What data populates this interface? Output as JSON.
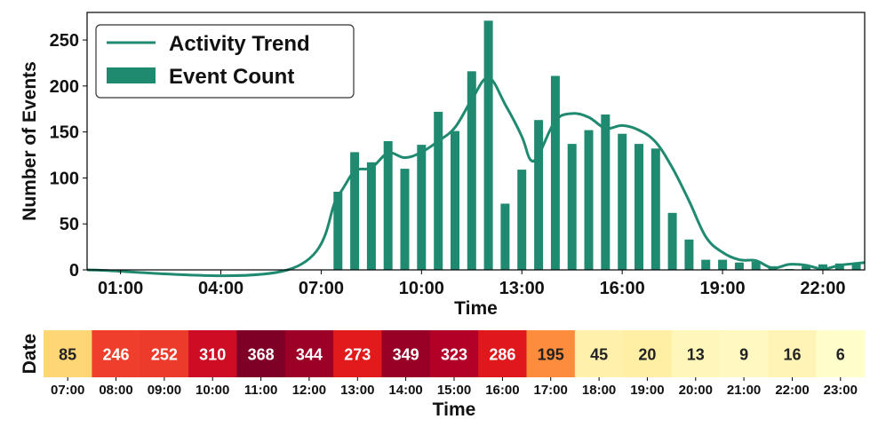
{
  "chart_data": [
    {
      "type": "bar",
      "xlabel": "Time",
      "ylabel": "Number of Events",
      "xlim_hours": [
        0.0,
        23.25
      ],
      "ylim": [
        0,
        280
      ],
      "y_ticks": [
        0,
        50,
        100,
        150,
        200,
        250
      ],
      "x_ticks": [
        "01:00",
        "04:00",
        "07:00",
        "10:00",
        "13:00",
        "16:00",
        "19:00",
        "22:00"
      ],
      "grid": false,
      "legend_position": "top-left",
      "series": [
        {
          "name": "Event Count",
          "kind": "bar",
          "color": "#1f8a70",
          "points": [
            {
              "x": "07:30",
              "y": 85
            },
            {
              "x": "08:00",
              "y": 128
            },
            {
              "x": "08:30",
              "y": 117
            },
            {
              "x": "09:00",
              "y": 140
            },
            {
              "x": "09:30",
              "y": 110
            },
            {
              "x": "10:00",
              "y": 136
            },
            {
              "x": "10:30",
              "y": 172
            },
            {
              "x": "11:00",
              "y": 151
            },
            {
              "x": "11:30",
              "y": 216
            },
            {
              "x": "12:00",
              "y": 271
            },
            {
              "x": "12:30",
              "y": 72
            },
            {
              "x": "13:00",
              "y": 109
            },
            {
              "x": "13:30",
              "y": 163
            },
            {
              "x": "14:00",
              "y": 211
            },
            {
              "x": "14:30",
              "y": 137
            },
            {
              "x": "15:00",
              "y": 152
            },
            {
              "x": "15:30",
              "y": 169
            },
            {
              "x": "16:00",
              "y": 148
            },
            {
              "x": "16:30",
              "y": 137
            },
            {
              "x": "17:00",
              "y": 132
            },
            {
              "x": "17:30",
              "y": 62
            },
            {
              "x": "18:00",
              "y": 33
            },
            {
              "x": "18:30",
              "y": 11
            },
            {
              "x": "19:00",
              "y": 11
            },
            {
              "x": "19:30",
              "y": 8
            },
            {
              "x": "20:00",
              "y": 9
            },
            {
              "x": "20:30",
              "y": 4
            },
            {
              "x": "21:00",
              "y": 1
            },
            {
              "x": "21:30",
              "y": 4
            },
            {
              "x": "22:00",
              "y": 6
            },
            {
              "x": "22:30",
              "y": 7
            },
            {
              "x": "23:00",
              "y": 7
            }
          ]
        },
        {
          "name": "Activity Trend",
          "kind": "line",
          "color": "#1f8a70",
          "points": [
            {
              "x": "00:00",
              "y": 0
            },
            {
              "x": "06:00",
              "y": 0
            },
            {
              "x": "07:30",
              "y": 80
            },
            {
              "x": "08:00",
              "y": 107
            },
            {
              "x": "08:30",
              "y": 111
            },
            {
              "x": "09:00",
              "y": 127
            },
            {
              "x": "09:30",
              "y": 122
            },
            {
              "x": "10:00",
              "y": 128
            },
            {
              "x": "10:30",
              "y": 140
            },
            {
              "x": "11:00",
              "y": 155
            },
            {
              "x": "11:30",
              "y": 185
            },
            {
              "x": "12:00",
              "y": 209
            },
            {
              "x": "12:30",
              "y": 180
            },
            {
              "x": "13:00",
              "y": 145
            },
            {
              "x": "13:15",
              "y": 120
            },
            {
              "x": "13:30",
              "y": 125
            },
            {
              "x": "14:00",
              "y": 162
            },
            {
              "x": "14:30",
              "y": 170
            },
            {
              "x": "15:00",
              "y": 166
            },
            {
              "x": "15:30",
              "y": 154
            },
            {
              "x": "16:00",
              "y": 157
            },
            {
              "x": "16:30",
              "y": 152
            },
            {
              "x": "17:00",
              "y": 139
            },
            {
              "x": "17:30",
              "y": 111
            },
            {
              "x": "18:00",
              "y": 75
            },
            {
              "x": "18:30",
              "y": 36
            },
            {
              "x": "19:00",
              "y": 19
            },
            {
              "x": "19:30",
              "y": 11
            },
            {
              "x": "20:00",
              "y": 10
            },
            {
              "x": "20:30",
              "y": 2
            },
            {
              "x": "21:00",
              "y": 6
            },
            {
              "x": "21:30",
              "y": 5
            },
            {
              "x": "22:00",
              "y": 1
            },
            {
              "x": "22:30",
              "y": 5
            },
            {
              "x": "23:00",
              "y": 7
            },
            {
              "x": "23:15",
              "y": 8
            }
          ]
        }
      ]
    },
    {
      "type": "heatmap",
      "xlabel": "Time",
      "ylabel": "Date",
      "colormap": "YlOrRd",
      "categories": [
        "07:00",
        "08:00",
        "09:00",
        "10:00",
        "11:00",
        "12:00",
        "13:00",
        "14:00",
        "15:00",
        "16:00",
        "17:00",
        "18:00",
        "19:00",
        "20:00",
        "21:00",
        "22:00",
        "23:00"
      ],
      "values": [
        85,
        246,
        252,
        310,
        368,
        344,
        273,
        349,
        323,
        286,
        195,
        45,
        20,
        13,
        9,
        16,
        6
      ],
      "cell_colors": [
        "#fed676",
        "#ef3e2c",
        "#ec3a2b",
        "#cc0d23",
        "#7f0026",
        "#9d0026",
        "#e31a1c",
        "#980026",
        "#b30026",
        "#e0181c",
        "#fd8c3c",
        "#fff0ac",
        "#ffefa5",
        "#fff7ba",
        "#fff8c1",
        "#fff4b6",
        "#ffffcc"
      ]
    }
  ]
}
